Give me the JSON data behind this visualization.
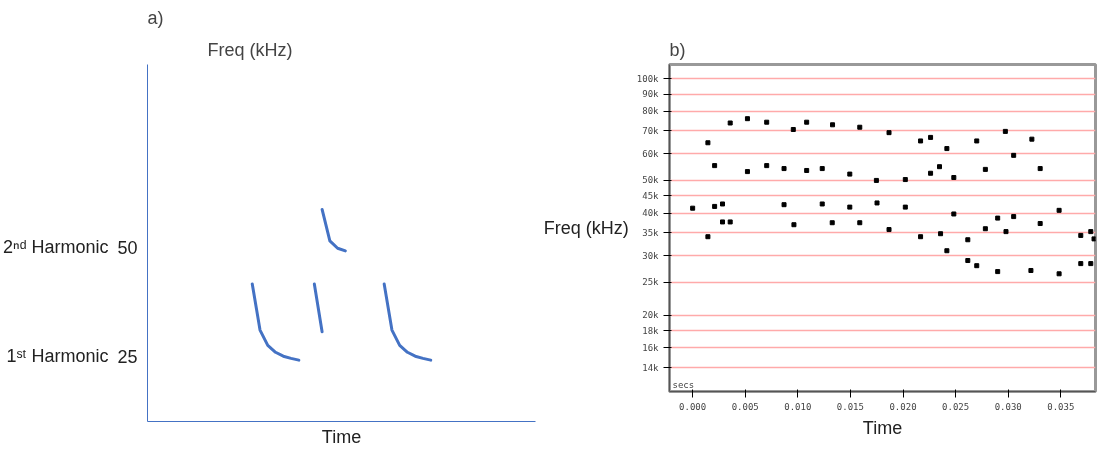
{
  "chart_data": [
    {
      "type": "line",
      "title": "a)",
      "xlabel": "Time",
      "ylabel": "Freq (kHz)",
      "ylim": [
        10,
        92
      ],
      "yticks": [
        25,
        50
      ],
      "grid": false,
      "line_style": "solid",
      "annotations": [
        "1ˢᵗ Harmonic",
        "2ⁿᵈ Harmonic"
      ],
      "categories": [
        null,
        null,
        null,
        null,
        null,
        null,
        null,
        null,
        null,
        null,
        null,
        null,
        null,
        null,
        null,
        null,
        null,
        null,
        null,
        null,
        null,
        null,
        null,
        null,
        null,
        null,
        null,
        null,
        null,
        null,
        null,
        null,
        null,
        null,
        null,
        null,
        null,
        null,
        null,
        null,
        null,
        null,
        null,
        null,
        null,
        null,
        null,
        null,
        null,
        null
      ],
      "series": [
        {
          "color": "#4472c4",
          "values": [
            null,
            null,
            null,
            null,
            null,
            null,
            null,
            null,
            null,
            null,
            null,
            null,
            null,
            41.6,
            31,
            27.5,
            25.9,
            25.0,
            24.5,
            24.1,
            null,
            null,
            null,
            null,
            null,
            null,
            null,
            null,
            null,
            null,
            null,
            null,
            null,
            null,
            null,
            null,
            null,
            null,
            null,
            null,
            null,
            null,
            null,
            null,
            null,
            null,
            null,
            null,
            null,
            null
          ]
        },
        {
          "color": "#4472c4",
          "values": [
            null,
            null,
            null,
            null,
            null,
            null,
            null,
            null,
            null,
            null,
            null,
            null,
            null,
            null,
            null,
            null,
            null,
            null,
            null,
            null,
            null,
            41.6,
            30.6,
            null,
            null,
            null,
            null,
            null,
            null,
            null,
            null,
            null,
            null,
            null,
            null,
            null,
            null,
            null,
            null,
            null,
            null,
            null,
            null,
            null,
            null,
            null,
            null,
            null,
            null,
            null
          ]
        },
        {
          "color": "#4472c4",
          "values": [
            null,
            null,
            null,
            null,
            null,
            null,
            null,
            null,
            null,
            null,
            null,
            null,
            null,
            null,
            null,
            null,
            null,
            null,
            null,
            null,
            null,
            null,
            null,
            null,
            null,
            null,
            null,
            null,
            null,
            null,
            41.6,
            31,
            27.5,
            25.9,
            25.0,
            24.5,
            24.1,
            null,
            null,
            null,
            null,
            null,
            null,
            null,
            null,
            null,
            null,
            null,
            null,
            null
          ]
        },
        {
          "color": "#4472c4",
          "values": [
            null,
            null,
            null,
            null,
            null,
            null,
            null,
            null,
            null,
            null,
            null,
            null,
            null,
            null,
            null,
            null,
            null,
            null,
            null,
            null,
            null,
            null,
            58.7,
            51.5,
            49.8,
            49.2,
            null,
            null,
            null,
            null,
            null,
            null,
            null,
            null,
            null,
            null,
            null,
            null,
            null,
            null,
            null,
            null,
            null,
            null,
            null,
            null,
            null,
            null,
            null,
            null
          ]
        }
      ]
    },
    {
      "type": "scatter",
      "title": "b)",
      "xlabel": "Time",
      "ylabel": "Freq (kHz)",
      "log": true,
      "grid": "y",
      "marker": "square",
      "annotations": [
        "secs"
      ],
      "xlim": [
        -0.0022,
        0.0383
      ],
      "ylim": [
        11900,
        110000
      ],
      "xticks": [
        {
          "value": 0,
          "label": "0.000"
        },
        {
          "value": 0.005,
          "label": "0.005"
        },
        {
          "value": 0.01,
          "label": "0.010"
        },
        {
          "value": 0.015,
          "label": "0.015"
        },
        {
          "value": 0.02,
          "label": "0.020"
        },
        {
          "value": 0.025,
          "label": "0.025"
        },
        {
          "value": 0.03,
          "label": "0.030"
        },
        {
          "value": 0.035,
          "label": "0.035"
        }
      ],
      "yticks": [
        {
          "value": 14000,
          "label": "14k"
        },
        {
          "value": 16000,
          "label": "16k"
        },
        {
          "value": 18000,
          "label": "18k"
        },
        {
          "value": 20000,
          "label": "20k"
        },
        {
          "value": 25000,
          "label": "25k"
        },
        {
          "value": 30000,
          "label": "30k"
        },
        {
          "value": 35000,
          "label": "35k"
        },
        {
          "value": 40000,
          "label": "40k"
        },
        {
          "value": 45000,
          "label": "45k"
        },
        {
          "value": 50000,
          "label": "50k"
        },
        {
          "value": 60000,
          "label": "60k"
        },
        {
          "value": 70000,
          "label": "70k"
        },
        {
          "value": 80000,
          "label": "80k"
        },
        {
          "value": 90000,
          "label": "90k"
        },
        {
          "value": 100000,
          "label": "100k"
        }
      ],
      "series": [
        {
          "color": "#000000",
          "x": [
            0.00145,
            0.00209,
            0.00357,
            0.00521,
            0.00521,
            0.00704,
            0.00704,
            0.00869,
            0.00957,
            0.01084,
            0.01084,
            0.01232,
            0.0133,
            0.01494,
            0.01589,
            0.01747,
            0.01867,
            0.02022,
            0.02167,
            0.02262,
            0.02262,
            0.02347,
            0.02417,
            0.02483,
            0.02701,
            0.02783,
            0.02973,
            0.03052,
            0.03225,
            0.03304,
            0,
            0.00145,
            0.00209,
            0.00284,
            0.00284,
            0.00357,
            0.00869,
            0.00963,
            0.01232,
            0.01327,
            0.01494,
            0.01589,
            0.01753,
            0.01867,
            0.02022,
            0.02167,
            0.02357,
            0.02417,
            0.02483,
            0.02616,
            0.02616,
            0.02701,
            0.02783,
            0.029,
            0.029,
            0.02979,
            0.03052,
            0.03216,
            0.03304,
            0.03484,
            0.03484,
            0.0369,
            0.0369,
            0.03785,
            0.03785,
            0.03816
          ],
          "values": [
            64600,
            55300,
            73900,
            53100,
            76100,
            55300,
            74300,
            54200,
            70700,
            53500,
            74300,
            54200,
            73000,
            52200,
            71800,
            50000,
            69200,
            50300,
            65400,
            52500,
            67000,
            54900,
            62100,
            51000,
            65400,
            53900,
            69800,
            59300,
            66200,
            54200,
            41400,
            34100,
            41900,
            37700,
            42600,
            37700,
            42400,
            37000,
            42600,
            37500,
            41700,
            37500,
            42900,
            35800,
            41700,
            34100,
            34800,
            31000,
            39800,
            29000,
            33400,
            28000,
            36000,
            26900,
            38700,
            35300,
            39100,
            27100,
            37300,
            26500,
            40800,
            28400,
            34400,
            28400,
            35300,
            33600
          ]
        }
      ]
    }
  ]
}
